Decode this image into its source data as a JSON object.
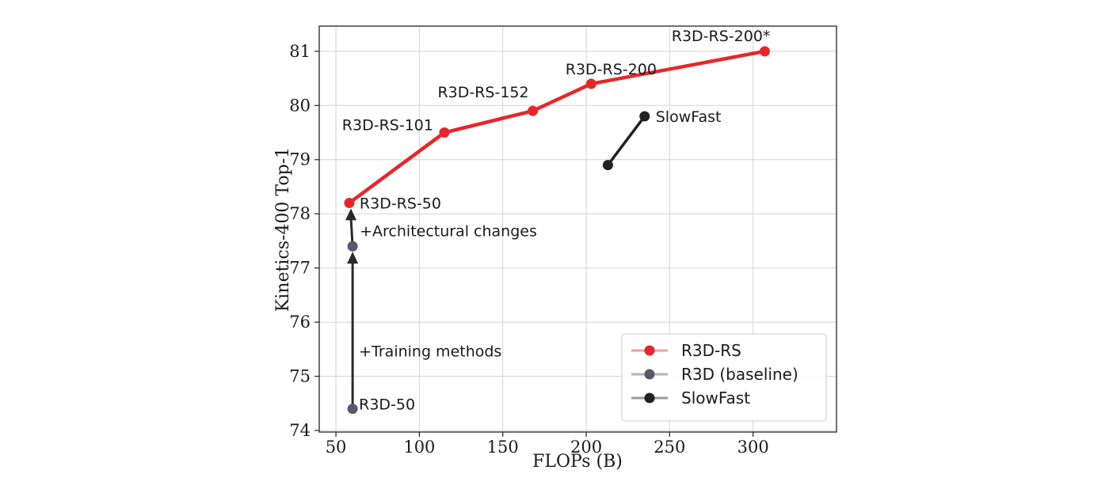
{
  "chart_data": {
    "type": "line",
    "xlabel": "FLOPs (B)",
    "ylabel": "Kinetics-400 Top-1",
    "xlim": [
      40,
      350
    ],
    "ylim": [
      74,
      81.1
    ],
    "xticks": [
      50,
      100,
      150,
      200,
      250,
      300
    ],
    "yticks": [
      74,
      75,
      76,
      77,
      78,
      79,
      80,
      81
    ],
    "grid": true,
    "legend_position": "lower-right",
    "series": [
      {
        "name": "R3D-RS",
        "color": "#e8262a",
        "points": [
          {
            "x": 58,
            "y": 78.2,
            "label": "R3D-RS-50"
          },
          {
            "x": 115,
            "y": 79.5,
            "label": "R3D-RS-101"
          },
          {
            "x": 168,
            "y": 79.9,
            "label": "R3D-RS-152"
          },
          {
            "x": 203,
            "y": 80.4,
            "label": "R3D-RS-200"
          },
          {
            "x": 307,
            "y": 81.0,
            "label": "R3D-RS-200*"
          }
        ]
      },
      {
        "name": "R3D (baseline)",
        "color": "#585866",
        "points": [
          {
            "x": 60,
            "y": 74.4,
            "label": "R3D-50"
          },
          {
            "x": 60,
            "y": 77.4,
            "label": ""
          }
        ]
      },
      {
        "name": "SlowFast",
        "color": "#222222",
        "points": [
          {
            "x": 213,
            "y": 78.9,
            "label": ""
          },
          {
            "x": 235,
            "y": 79.8,
            "label": "SlowFast"
          }
        ]
      }
    ],
    "annotations": [
      {
        "text": "+Training methods",
        "x_from": 60,
        "y_from": 74.4,
        "x_to": 60,
        "y_to": 77.3
      },
      {
        "text": "+Architectural changes",
        "x_from": 60,
        "y_from": 77.4,
        "x_to": 59,
        "y_to": 78.1
      }
    ]
  }
}
